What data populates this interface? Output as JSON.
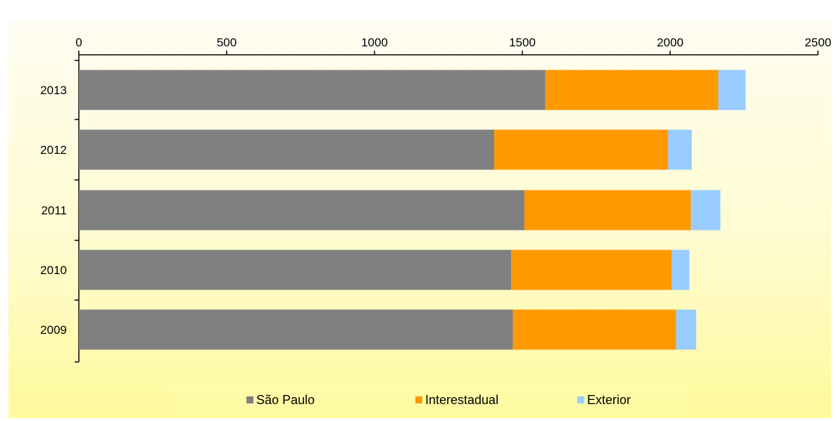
{
  "chart_data": {
    "type": "bar",
    "orientation": "horizontal",
    "stacked": true,
    "title": "",
    "xlabel": "",
    "ylabel": "",
    "xlim": [
      0,
      2500
    ],
    "x_ticks": [
      "0",
      "500",
      "1000",
      "1500",
      "2000",
      "2500"
    ],
    "x_axis_position": "top",
    "grid": false,
    "categories": [
      "2013",
      "2012",
      "2011",
      "2010",
      "2009"
    ],
    "series": [
      {
        "name": "São Paulo",
        "color": "#808080",
        "values": [
          1578,
          1405,
          1507,
          1462,
          1468
        ]
      },
      {
        "name": "Interestadual",
        "color": "#ff9900",
        "values": [
          585,
          588,
          563,
          543,
          552
        ]
      },
      {
        "name": "Exterior",
        "color": "#99ccff",
        "values": [
          92,
          80,
          100,
          60,
          68
        ]
      }
    ],
    "legend": {
      "position": "bottom"
    }
  }
}
